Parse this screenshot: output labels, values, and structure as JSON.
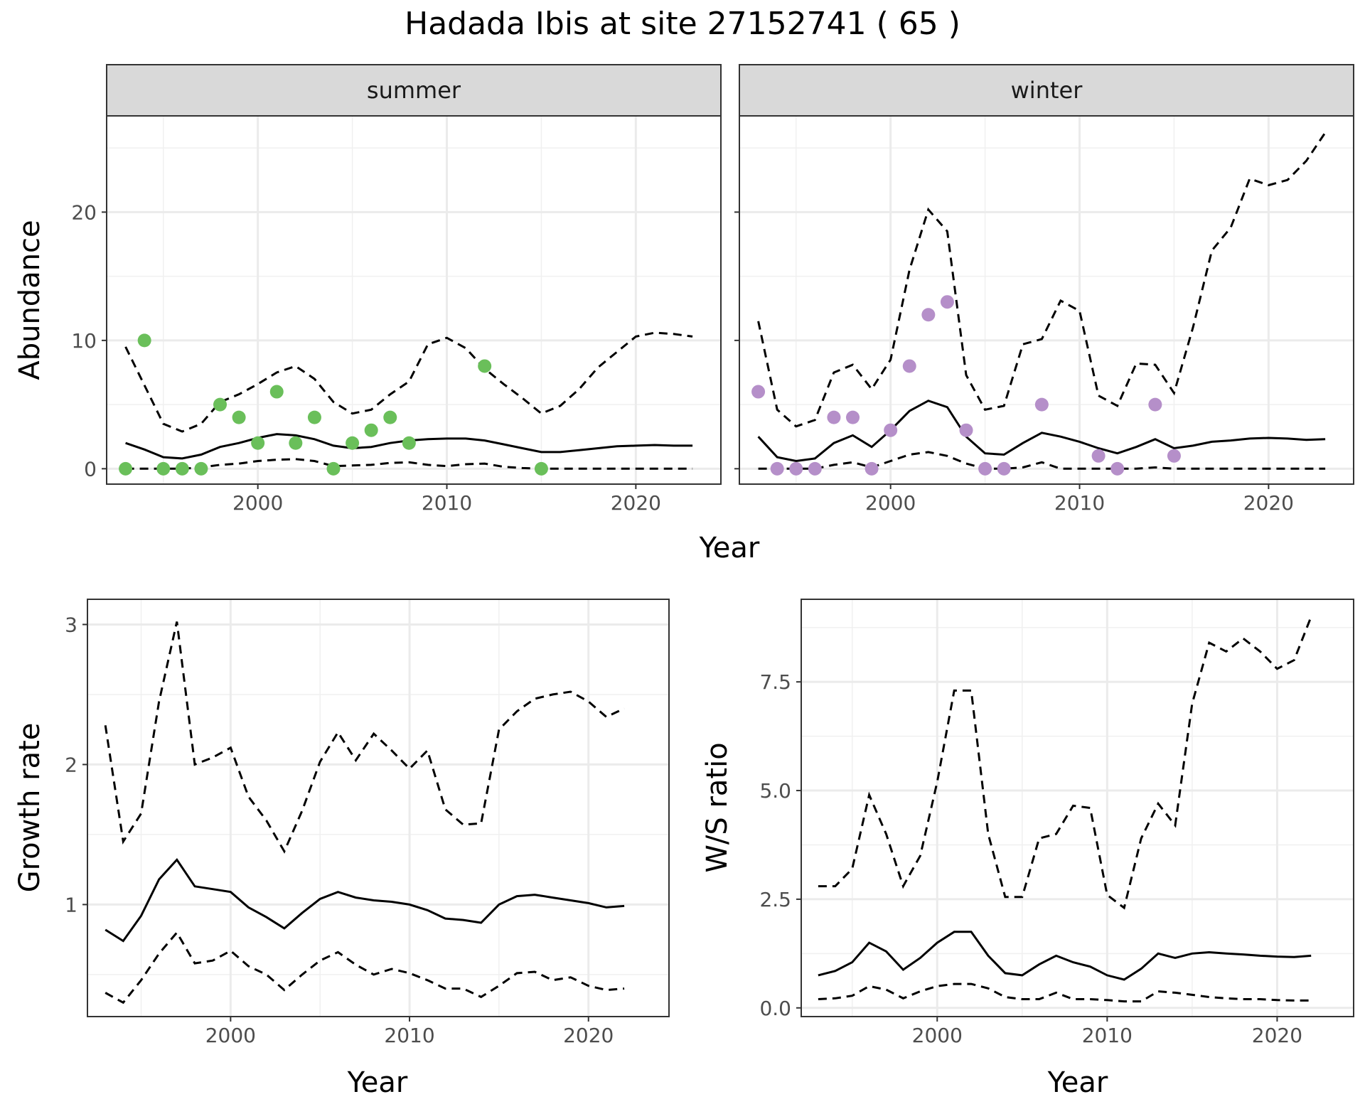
{
  "title": "Hadada Ibis at site 27152741 ( 65 )",
  "colors": {
    "summer": "#6ABF5A",
    "winter": "#B58FC9",
    "line": "#000000"
  },
  "chart_data": [
    {
      "type": "line",
      "panel": "summer",
      "xlabel": "Year",
      "ylabel": "Abundance",
      "xlim": [
        1992,
        2024.5
      ],
      "ylim": [
        -1.2,
        27.5
      ],
      "xticks": [
        2000,
        2010,
        2020
      ],
      "yticks": [
        0,
        10,
        20
      ],
      "estimate": {
        "x": [
          1993,
          1994,
          1995,
          1996,
          1997,
          1998,
          1999,
          2000,
          2001,
          2002,
          2003,
          2004,
          2005,
          2006,
          2007,
          2008,
          2009,
          2010,
          2011,
          2012,
          2013,
          2014,
          2015,
          2016,
          2017,
          2018,
          2019,
          2020,
          2021,
          2022,
          2023
        ],
        "y": [
          2.0,
          1.5,
          0.9,
          0.8,
          1.1,
          1.7,
          2.0,
          2.4,
          2.7,
          2.6,
          2.3,
          1.8,
          1.6,
          1.7,
          2.0,
          2.2,
          2.3,
          2.35,
          2.35,
          2.2,
          1.9,
          1.6,
          1.3,
          1.3,
          1.45,
          1.6,
          1.75,
          1.8,
          1.85,
          1.8,
          1.8
        ]
      },
      "upper": {
        "x": [
          1993,
          1994,
          1995,
          1996,
          1997,
          1998,
          1999,
          2000,
          2001,
          2002,
          2003,
          2004,
          2005,
          2006,
          2007,
          2008,
          2009,
          2010,
          2011,
          2012,
          2013,
          2014,
          2015,
          2016,
          2017,
          2018,
          2019,
          2020,
          2021,
          2022,
          2023
        ],
        "y": [
          9.5,
          6.5,
          3.5,
          2.9,
          3.5,
          5.2,
          5.8,
          6.6,
          7.5,
          8.0,
          7.0,
          5.2,
          4.3,
          4.6,
          5.8,
          6.8,
          9.7,
          10.2,
          9.4,
          7.8,
          6.6,
          5.5,
          4.3,
          4.9,
          6.2,
          7.9,
          9.1,
          10.3,
          10.6,
          10.5,
          10.3
        ]
      },
      "lower": {
        "x": [
          1993,
          1994,
          1995,
          1996,
          1997,
          1998,
          1999,
          2000,
          2001,
          2002,
          2003,
          2004,
          2005,
          2006,
          2007,
          2008,
          2009,
          2010,
          2011,
          2012,
          2013,
          2014,
          2015,
          2016,
          2017,
          2018,
          2019,
          2020,
          2021,
          2022,
          2023
        ],
        "y": [
          0,
          0,
          0,
          0,
          0.1,
          0.3,
          0.4,
          0.6,
          0.7,
          0.75,
          0.6,
          0.2,
          0.25,
          0.3,
          0.45,
          0.5,
          0.3,
          0.2,
          0.35,
          0.4,
          0.15,
          0.05,
          0,
          0,
          0,
          0,
          0,
          0,
          0,
          0,
          0
        ]
      },
      "points": {
        "x": [
          1993,
          1994,
          1995,
          1996,
          1997,
          1998,
          1999,
          2000,
          2001,
          2002,
          2003,
          2004,
          2005,
          2006,
          2007,
          2008,
          2012,
          2015
        ],
        "y": [
          0,
          10,
          0,
          0,
          0,
          5,
          4,
          2,
          6,
          2,
          4,
          0,
          2,
          3,
          4,
          2,
          8,
          0
        ]
      }
    },
    {
      "type": "line",
      "panel": "winter",
      "xlabel": "Year",
      "ylabel": "Abundance",
      "xlim": [
        1992,
        2024.5
      ],
      "ylim": [
        -1.2,
        27.5
      ],
      "xticks": [
        2000,
        2010,
        2020
      ],
      "yticks": [
        0,
        10,
        20
      ],
      "estimate": {
        "x": [
          1993,
          1994,
          1995,
          1996,
          1997,
          1998,
          1999,
          2000,
          2001,
          2002,
          2003,
          2004,
          2005,
          2006,
          2007,
          2008,
          2009,
          2010,
          2011,
          2012,
          2013,
          2014,
          2015,
          2016,
          2017,
          2018,
          2019,
          2020,
          2021,
          2022,
          2023
        ],
        "y": [
          2.5,
          0.9,
          0.6,
          0.8,
          2.0,
          2.6,
          1.7,
          3.0,
          4.5,
          5.3,
          4.8,
          2.5,
          1.2,
          1.1,
          2.0,
          2.8,
          2.5,
          2.1,
          1.6,
          1.2,
          1.7,
          2.3,
          1.6,
          1.8,
          2.1,
          2.2,
          2.35,
          2.4,
          2.35,
          2.25,
          2.3
        ]
      },
      "upper": {
        "x": [
          1993,
          1994,
          1995,
          1996,
          1997,
          1998,
          1999,
          2000,
          2001,
          2002,
          2003,
          2004,
          2005,
          2006,
          2007,
          2008,
          2009,
          2010,
          2011,
          2012,
          2013,
          2014,
          2015,
          2016,
          2017,
          2018,
          2019,
          2020,
          2021,
          2022,
          2023
        ],
        "y": [
          11.5,
          4.6,
          3.3,
          3.8,
          7.5,
          8.1,
          6.2,
          8.5,
          15.5,
          20.2,
          18.5,
          7.3,
          4.6,
          4.9,
          9.7,
          10.1,
          13.1,
          12.3,
          5.7,
          4.9,
          8.2,
          8.1,
          5.9,
          11.0,
          17.0,
          18.8,
          22.6,
          22.1,
          22.5,
          24.0,
          26.2
        ]
      },
      "lower": {
        "x": [
          1993,
          1994,
          1995,
          1996,
          1997,
          1998,
          1999,
          2000,
          2001,
          2002,
          2003,
          2004,
          2005,
          2006,
          2007,
          2008,
          2009,
          2010,
          2011,
          2012,
          2013,
          2014,
          2015,
          2016,
          2017,
          2018,
          2019,
          2020,
          2021,
          2022,
          2023
        ],
        "y": [
          0,
          0,
          0,
          0,
          0.3,
          0.5,
          0.1,
          0.6,
          1.1,
          1.3,
          1.0,
          0.4,
          0,
          0,
          0.1,
          0.5,
          0,
          0,
          0,
          0,
          0,
          0.1,
          0,
          0,
          0,
          0,
          0,
          0,
          0,
          0,
          0
        ]
      },
      "points": {
        "x": [
          1993,
          1994,
          1995,
          1996,
          1997,
          1998,
          1999,
          2000,
          2001,
          2002,
          2003,
          2004,
          2005,
          2006,
          2008,
          2011,
          2012,
          2014,
          2015
        ],
        "y": [
          6,
          0,
          0,
          0,
          4,
          4,
          0,
          3,
          8,
          12,
          13,
          3,
          0,
          0,
          5,
          1,
          0,
          5,
          1
        ]
      }
    },
    {
      "type": "line",
      "panel": "growth",
      "xlabel": "Year",
      "ylabel": "Growth rate",
      "xlim": [
        1992,
        2024.5
      ],
      "ylim": [
        0.2,
        3.18
      ],
      "xticks": [
        2000,
        2010,
        2020
      ],
      "yticks": [
        1,
        2,
        3
      ],
      "estimate": {
        "x": [
          1993,
          1994,
          1995,
          1996,
          1997,
          1998,
          1999,
          2000,
          2001,
          2002,
          2003,
          2004,
          2005,
          2006,
          2007,
          2008,
          2009,
          2010,
          2011,
          2012,
          2013,
          2014,
          2015,
          2016,
          2017,
          2018,
          2019,
          2020,
          2021,
          2022
        ],
        "y": [
          0.82,
          0.74,
          0.92,
          1.18,
          1.32,
          1.13,
          1.11,
          1.09,
          0.98,
          0.91,
          0.83,
          0.94,
          1.04,
          1.09,
          1.05,
          1.03,
          1.02,
          1.0,
          0.96,
          0.9,
          0.89,
          0.87,
          1.0,
          1.06,
          1.07,
          1.05,
          1.03,
          1.01,
          0.98,
          0.99
        ]
      },
      "upper": {
        "x": [
          1993,
          1994,
          1995,
          1996,
          1997,
          1998,
          1999,
          2000,
          2001,
          2002,
          2003,
          2004,
          2005,
          2006,
          2007,
          2008,
          2009,
          2010,
          2011,
          2012,
          2013,
          2014,
          2015,
          2016,
          2017,
          2018,
          2019,
          2020,
          2021,
          2022
        ],
        "y": [
          2.28,
          1.45,
          1.65,
          2.45,
          3.02,
          2.0,
          2.05,
          2.12,
          1.77,
          1.6,
          1.38,
          1.67,
          2.02,
          2.23,
          2.03,
          2.22,
          2.1,
          1.97,
          2.1,
          1.68,
          1.57,
          1.58,
          2.25,
          2.38,
          2.47,
          2.5,
          2.52,
          2.45,
          2.34,
          2.4
        ]
      },
      "lower": {
        "x": [
          1993,
          1994,
          1995,
          1996,
          1997,
          1998,
          1999,
          2000,
          2001,
          2002,
          2003,
          2004,
          2005,
          2006,
          2007,
          2008,
          2009,
          2010,
          2011,
          2012,
          2013,
          2014,
          2015,
          2016,
          2017,
          2018,
          2019,
          2020,
          2021,
          2022
        ],
        "y": [
          0.37,
          0.3,
          0.46,
          0.65,
          0.8,
          0.58,
          0.6,
          0.67,
          0.56,
          0.5,
          0.39,
          0.5,
          0.6,
          0.66,
          0.57,
          0.5,
          0.54,
          0.51,
          0.46,
          0.4,
          0.4,
          0.34,
          0.42,
          0.51,
          0.52,
          0.46,
          0.48,
          0.42,
          0.39,
          0.4
        ]
      }
    },
    {
      "type": "line",
      "panel": "ratio",
      "xlabel": "Year",
      "ylabel": "W/S ratio",
      "xlim": [
        1992,
        2024.5
      ],
      "ylim": [
        -0.2,
        9.4
      ],
      "xticks": [
        2000,
        2010,
        2020
      ],
      "yticks": [
        0.0,
        2.5,
        5.0,
        7.5
      ],
      "ytick_labels": [
        "0.0",
        "2.5",
        "5.0",
        "7.5"
      ],
      "estimate": {
        "x": [
          1993,
          1994,
          1995,
          1996,
          1997,
          1998,
          1999,
          2000,
          2001,
          2002,
          2003,
          2004,
          2005,
          2006,
          2007,
          2008,
          2009,
          2010,
          2011,
          2012,
          2013,
          2014,
          2015,
          2016,
          2017,
          2018,
          2019,
          2020,
          2021,
          2022
        ],
        "y": [
          0.75,
          0.85,
          1.05,
          1.5,
          1.3,
          0.88,
          1.15,
          1.5,
          1.75,
          1.75,
          1.2,
          0.8,
          0.75,
          1.0,
          1.2,
          1.05,
          0.95,
          0.75,
          0.65,
          0.9,
          1.25,
          1.15,
          1.25,
          1.28,
          1.25,
          1.23,
          1.2,
          1.18,
          1.17,
          1.2
        ]
      },
      "upper": {
        "x": [
          1993,
          1994,
          1995,
          1996,
          1997,
          1998,
          1999,
          2000,
          2001,
          2002,
          2003,
          2004,
          2005,
          2006,
          2007,
          2008,
          2009,
          2010,
          2011,
          2012,
          2013,
          2014,
          2015,
          2016,
          2017,
          2018,
          2019,
          2020,
          2021,
          2022
        ],
        "y": [
          2.8,
          2.8,
          3.2,
          4.9,
          4.0,
          2.8,
          3.5,
          5.2,
          7.3,
          7.3,
          4.0,
          2.55,
          2.55,
          3.9,
          4.0,
          4.65,
          4.6,
          2.6,
          2.3,
          3.9,
          4.7,
          4.2,
          7.0,
          8.4,
          8.2,
          8.5,
          8.2,
          7.8,
          8.0,
          9.0
        ]
      },
      "lower": {
        "x": [
          1993,
          1994,
          1995,
          1996,
          1997,
          1998,
          1999,
          2000,
          2001,
          2002,
          2003,
          2004,
          2005,
          2006,
          2007,
          2008,
          2009,
          2010,
          2011,
          2012,
          2013,
          2014,
          2015,
          2016,
          2017,
          2018,
          2019,
          2020,
          2021,
          2022
        ],
        "y": [
          0.2,
          0.22,
          0.28,
          0.5,
          0.42,
          0.22,
          0.38,
          0.5,
          0.55,
          0.55,
          0.45,
          0.25,
          0.2,
          0.2,
          0.35,
          0.2,
          0.2,
          0.18,
          0.15,
          0.15,
          0.38,
          0.35,
          0.3,
          0.25,
          0.22,
          0.2,
          0.2,
          0.18,
          0.17,
          0.17
        ]
      }
    }
  ]
}
